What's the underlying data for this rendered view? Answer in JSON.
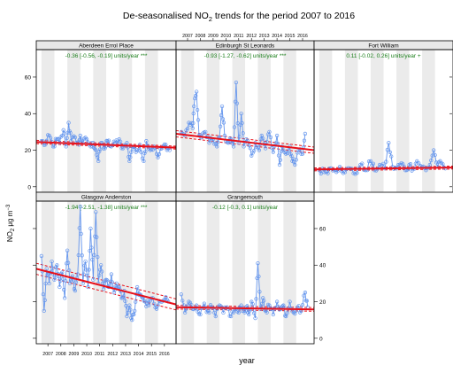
{
  "chart_data": {
    "type": "line",
    "title": "De-seasonalised NO",
    "title_sub": "2",
    "title_rest": " trends for the period 2007 to 2016",
    "xlabel": "year",
    "ylabel": "NO",
    "ylabel_sub": "2",
    "ylabel_rest": " μg m",
    "ylabel_sup": "−3",
    "x_ticks": [
      "2007",
      "2008",
      "2009",
      "2010",
      "2011",
      "2012",
      "2013",
      "2014",
      "2015",
      "2016"
    ],
    "y_ticks": [
      0,
      20,
      40,
      60
    ],
    "xlim": [
      2006.6,
      2017.4
    ],
    "ylim": [
      -3,
      75
    ],
    "colors": {
      "series": "#6495ed",
      "trend": "#e8101a",
      "stat": "#1a7f1a",
      "band": "#ebebeb",
      "strip": "#e8e8e8"
    },
    "panels": [
      {
        "name": "Aberdeen Errol Place",
        "stat": "-0.36 [-0.56, -0.19] units/year ***",
        "trend": {
          "y_start": 24.5,
          "y_end": 21.4,
          "lower_start": 23.6,
          "lower_end": 20.6,
          "upper_start": 25.4,
          "upper_end": 22.2
        },
        "anchors": [
          [
            2007.0,
            25
          ],
          [
            2007.3,
            23
          ],
          [
            2007.6,
            28
          ],
          [
            2007.9,
            22
          ],
          [
            2008.2,
            26
          ],
          [
            2008.4,
            24
          ],
          [
            2008.7,
            31
          ],
          [
            2008.9,
            22
          ],
          [
            2009.1,
            35
          ],
          [
            2009.3,
            25
          ],
          [
            2009.6,
            27
          ],
          [
            2009.9,
            23
          ],
          [
            2010.0,
            28
          ],
          [
            2010.2,
            24
          ],
          [
            2010.5,
            26
          ],
          [
            2010.8,
            22
          ],
          [
            2011.0,
            24
          ],
          [
            2011.2,
            20
          ],
          [
            2011.4,
            14
          ],
          [
            2011.6,
            24
          ],
          [
            2011.9,
            21
          ],
          [
            2012.1,
            25
          ],
          [
            2012.4,
            22
          ],
          [
            2012.7,
            24
          ],
          [
            2013.0,
            26
          ],
          [
            2013.3,
            21
          ],
          [
            2013.6,
            24
          ],
          [
            2013.8,
            14
          ],
          [
            2014.0,
            22
          ],
          [
            2014.3,
            19
          ],
          [
            2014.6,
            23
          ],
          [
            2014.9,
            14
          ],
          [
            2015.1,
            25
          ],
          [
            2015.4,
            20
          ],
          [
            2015.7,
            22
          ],
          [
            2016.0,
            16
          ],
          [
            2016.3,
            21
          ],
          [
            2016.6,
            23
          ],
          [
            2016.9,
            20
          ]
        ]
      },
      {
        "name": "Edinburgh St Leonards",
        "stat": "-0.93 [-1.27, -0.62] units/year ***",
        "trend": {
          "y_start": 29.0,
          "y_end": 20.0,
          "lower_start": 27.3,
          "lower_end": 18.3,
          "upper_start": 30.7,
          "upper_end": 21.7
        },
        "anchors": [
          [
            2007.0,
            30
          ],
          [
            2007.3,
            28
          ],
          [
            2007.6,
            35
          ],
          [
            2007.9,
            32
          ],
          [
            2008.0,
            44
          ],
          [
            2008.2,
            52
          ],
          [
            2008.4,
            28
          ],
          [
            2008.6,
            27
          ],
          [
            2008.9,
            30
          ],
          [
            2009.2,
            24
          ],
          [
            2009.5,
            26
          ],
          [
            2009.8,
            22
          ],
          [
            2010.0,
            27
          ],
          [
            2010.2,
            44
          ],
          [
            2010.4,
            28
          ],
          [
            2010.7,
            24
          ],
          [
            2010.9,
            26
          ],
          [
            2011.1,
            22
          ],
          [
            2011.3,
            57
          ],
          [
            2011.5,
            24
          ],
          [
            2011.7,
            40
          ],
          [
            2011.9,
            22
          ],
          [
            2012.2,
            25
          ],
          [
            2012.5,
            17
          ],
          [
            2012.8,
            24
          ],
          [
            2013.1,
            20
          ],
          [
            2013.3,
            28
          ],
          [
            2013.6,
            21
          ],
          [
            2013.9,
            30
          ],
          [
            2014.2,
            19
          ],
          [
            2014.5,
            28
          ],
          [
            2014.7,
            12
          ],
          [
            2014.9,
            22
          ],
          [
            2015.2,
            18
          ],
          [
            2015.5,
            22
          ],
          [
            2015.7,
            14
          ],
          [
            2015.9,
            12
          ],
          [
            2016.2,
            20
          ],
          [
            2016.5,
            18
          ],
          [
            2016.7,
            29
          ]
        ]
      },
      {
        "name": "Fort William",
        "stat": "0.11 [-0.02, 0.26] units/year +",
        "trend": {
          "y_start": 9.5,
          "y_end": 10.5,
          "lower_start": 8.7,
          "lower_end": 9.7,
          "upper_start": 10.3,
          "upper_end": 11.3
        },
        "anchors": [
          [
            2007.0,
            9
          ],
          [
            2007.4,
            8
          ],
          [
            2007.8,
            10
          ],
          [
            2008.2,
            9
          ],
          [
            2008.6,
            11
          ],
          [
            2009.0,
            8
          ],
          [
            2009.4,
            10
          ],
          [
            2009.8,
            7
          ],
          [
            2010.2,
            12
          ],
          [
            2010.6,
            9
          ],
          [
            2011.0,
            14
          ],
          [
            2011.3,
            9
          ],
          [
            2011.7,
            12
          ],
          [
            2012.1,
            10
          ],
          [
            2012.4,
            24
          ],
          [
            2012.7,
            11
          ],
          [
            2013.0,
            10
          ],
          [
            2013.4,
            13
          ],
          [
            2013.7,
            9
          ],
          [
            2014.0,
            12
          ],
          [
            2014.3,
            10
          ],
          [
            2014.6,
            14
          ],
          [
            2015.0,
            11
          ],
          [
            2015.3,
            9
          ],
          [
            2015.6,
            12
          ],
          [
            2015.9,
            20
          ],
          [
            2016.2,
            11
          ],
          [
            2016.5,
            13
          ],
          [
            2016.8,
            10
          ]
        ]
      },
      {
        "name": "Glasgow Anderston",
        "stat": "-1.94 [-2.51, -1.38] units/year ***",
        "trend": {
          "y_start": 38.0,
          "y_end": 18.5,
          "lower_start": 35.0,
          "lower_end": 15.5,
          "upper_start": 41.0,
          "upper_end": 21.5
        },
        "anchors": [
          [
            2007.0,
            45
          ],
          [
            2007.2,
            15
          ],
          [
            2007.4,
            38
          ],
          [
            2007.6,
            30
          ],
          [
            2007.8,
            42
          ],
          [
            2008.0,
            32
          ],
          [
            2008.2,
            40
          ],
          [
            2008.4,
            28
          ],
          [
            2008.6,
            36
          ],
          [
            2008.8,
            22
          ],
          [
            2009.0,
            48
          ],
          [
            2009.2,
            30
          ],
          [
            2009.4,
            34
          ],
          [
            2009.6,
            26
          ],
          [
            2009.8,
            35
          ],
          [
            2010.0,
            72
          ],
          [
            2010.2,
            30
          ],
          [
            2010.4,
            42
          ],
          [
            2010.6,
            28
          ],
          [
            2010.8,
            60
          ],
          [
            2011.0,
            32
          ],
          [
            2011.2,
            69
          ],
          [
            2011.4,
            30
          ],
          [
            2011.6,
            40
          ],
          [
            2011.8,
            27
          ],
          [
            2012.0,
            32
          ],
          [
            2012.2,
            28
          ],
          [
            2012.4,
            35
          ],
          [
            2012.6,
            25
          ],
          [
            2012.8,
            30
          ],
          [
            2013.0,
            28
          ],
          [
            2013.2,
            22
          ],
          [
            2013.4,
            26
          ],
          [
            2013.6,
            12
          ],
          [
            2013.8,
            18
          ],
          [
            2014.0,
            10
          ],
          [
            2014.2,
            15
          ],
          [
            2014.4,
            28
          ],
          [
            2014.6,
            24
          ],
          [
            2014.8,
            22
          ],
          [
            2015.0,
            20
          ],
          [
            2015.3,
            18
          ],
          [
            2015.6,
            22
          ],
          [
            2015.9,
            16
          ],
          [
            2016.2,
            20
          ],
          [
            2016.5,
            21
          ],
          [
            2016.8,
            20
          ]
        ]
      },
      {
        "name": "Grangemouth",
        "stat": "-0.12 [-0.3, 0.1] units/year",
        "trend": {
          "y_start": 17.0,
          "y_end": 15.8,
          "lower_start": 16.0,
          "lower_end": 14.8,
          "upper_start": 18.0,
          "upper_end": 16.8
        },
        "anchors": [
          [
            2007.0,
            24
          ],
          [
            2007.3,
            14
          ],
          [
            2007.6,
            20
          ],
          [
            2007.9,
            16
          ],
          [
            2008.2,
            18
          ],
          [
            2008.5,
            13
          ],
          [
            2008.8,
            19
          ],
          [
            2009.1,
            15
          ],
          [
            2009.4,
            17
          ],
          [
            2009.7,
            12
          ],
          [
            2010.0,
            18
          ],
          [
            2010.3,
            14
          ],
          [
            2010.6,
            17
          ],
          [
            2010.9,
            12
          ],
          [
            2011.2,
            16
          ],
          [
            2011.5,
            14
          ],
          [
            2011.7,
            18
          ],
          [
            2011.9,
            15
          ],
          [
            2012.1,
            17
          ],
          [
            2012.3,
            13
          ],
          [
            2012.5,
            20
          ],
          [
            2012.8,
            11
          ],
          [
            2013.0,
            41
          ],
          [
            2013.2,
            16
          ],
          [
            2013.4,
            22
          ],
          [
            2013.6,
            15
          ],
          [
            2013.9,
            18
          ],
          [
            2014.2,
            13
          ],
          [
            2014.5,
            20
          ],
          [
            2014.8,
            16
          ],
          [
            2015.0,
            18
          ],
          [
            2015.2,
            12
          ],
          [
            2015.5,
            20
          ],
          [
            2015.8,
            14
          ],
          [
            2016.1,
            17
          ],
          [
            2016.4,
            15
          ],
          [
            2016.7,
            25
          ],
          [
            2016.9,
            17
          ]
        ]
      }
    ]
  }
}
